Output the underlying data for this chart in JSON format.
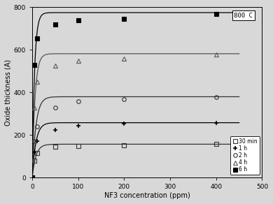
{
  "title": "800 C",
  "xlabel": "NF3 concentration (ppm)",
  "ylabel": "Oxide thickness (A)",
  "xlim": [
    0,
    500
  ],
  "ylim": [
    0,
    800
  ],
  "xticks": [
    0,
    100,
    200,
    300,
    400,
    500
  ],
  "yticks": [
    0,
    200,
    400,
    600,
    800
  ],
  "series": [
    {
      "label": "30 min",
      "marker": "s",
      "filled": false,
      "color": "#333333",
      "x": [
        0,
        5,
        10,
        50,
        100,
        200,
        400
      ],
      "y": [
        0,
        80,
        115,
        145,
        150,
        153,
        157
      ],
      "A": 157,
      "tau": 8
    },
    {
      "label": "1 h",
      "marker": "+",
      "filled": true,
      "color": "#000000",
      "x": [
        0,
        5,
        10,
        50,
        100,
        200,
        400
      ],
      "y": [
        0,
        120,
        170,
        225,
        245,
        252,
        258
      ],
      "A": 258,
      "tau": 8
    },
    {
      "label": "2 h",
      "marker": "o",
      "filled": false,
      "color": "#333333",
      "x": [
        0,
        5,
        10,
        50,
        100,
        200,
        400
      ],
      "y": [
        0,
        170,
        240,
        330,
        358,
        368,
        378
      ],
      "A": 380,
      "tau": 8
    },
    {
      "label": "4 h",
      "marker": "^",
      "filled": false,
      "color": "#555555",
      "x": [
        0,
        5,
        10,
        50,
        100,
        200,
        400
      ],
      "y": [
        0,
        330,
        450,
        525,
        548,
        558,
        578
      ],
      "A": 582,
      "tau": 6
    },
    {
      "label": "6 h",
      "marker": "s",
      "filled": true,
      "color": "#000000",
      "x": [
        0,
        5,
        10,
        50,
        100,
        200,
        400
      ],
      "y": [
        0,
        530,
        655,
        720,
        740,
        745,
        770
      ],
      "A": 775,
      "tau": 5
    }
  ],
  "bg_color": "#d8d8d8",
  "legend_loc": "lower right",
  "legend_fontsize": 5.5
}
